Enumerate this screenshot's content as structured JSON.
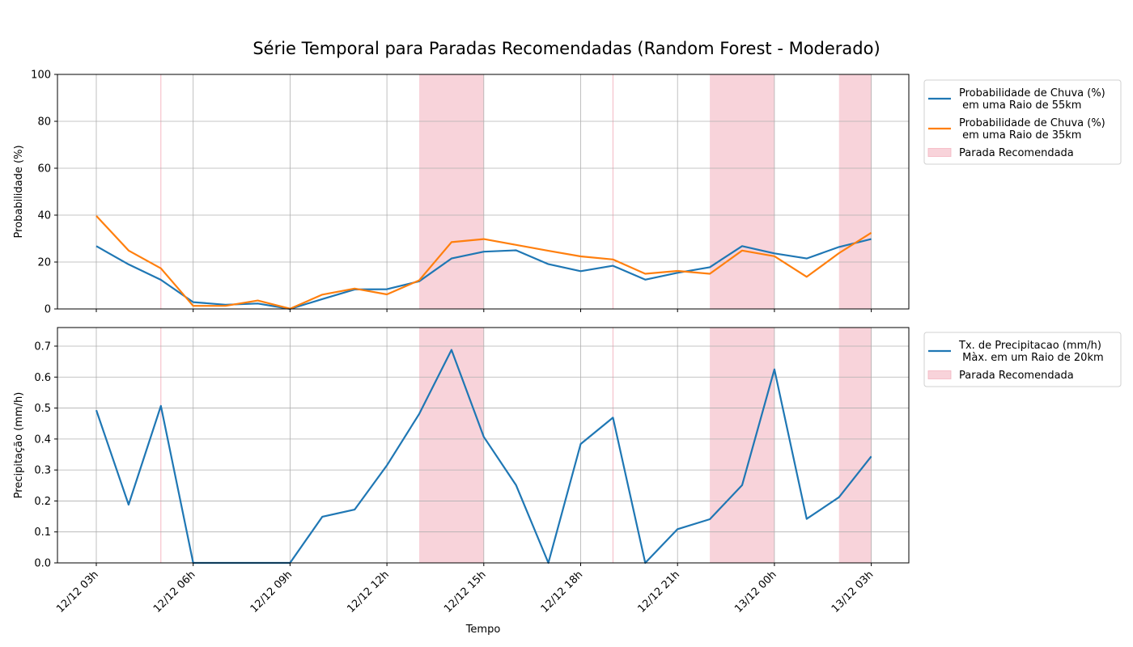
{
  "figure": {
    "title": "Série Temporal para Paradas Recomendadas (Random Forest - Moderado)",
    "xlabel": "Tempo"
  },
  "colors": {
    "blue": "#1f77b4",
    "orange": "#ff7f0e",
    "stop_fill": "#f4b6c2",
    "grid": "#b0b0b0"
  },
  "chart_data": [
    {
      "type": "line",
      "ylabel": "Probabilidade (%)",
      "ylim": [
        0,
        100
      ],
      "yticks": [
        "0",
        "20",
        "40",
        "60",
        "80",
        "100"
      ],
      "yticks_values": [
        0,
        20,
        40,
        60,
        80,
        100
      ],
      "x": [
        "12/12 03h",
        "12/12 04h",
        "12/12 05h",
        "12/12 06h",
        "12/12 07h",
        "12/12 08h",
        "12/12 09h",
        "12/12 10h",
        "12/12 11h",
        "12/12 12h",
        "12/12 13h",
        "12/12 14h",
        "12/12 15h",
        "12/12 16h",
        "12/12 17h",
        "12/12 18h",
        "12/12 19h",
        "12/12 20h",
        "12/12 21h",
        "12/12 22h",
        "12/12 23h",
        "13/12 00h",
        "13/12 01h",
        "13/12 02h",
        "13/12 03h"
      ],
      "series": [
        {
          "name": "Probabilidade de Chuva (%)\n em uma Raio de 55km",
          "color": "#1f77b4",
          "values": [
            26.8,
            19,
            12.4,
            2.9,
            1.8,
            2.3,
            0,
            4.2,
            8.3,
            8.4,
            11.8,
            21.5,
            24.4,
            25,
            19.1,
            16.1,
            18.4,
            12.5,
            15.4,
            17.8,
            26.8,
            23.7,
            21.5,
            26.4,
            29.8
          ]
        },
        {
          "name": "Probabilidade de Chuva (%)\n em uma Raio de 35km",
          "color": "#ff7f0e",
          "values": [
            39.7,
            24.9,
            17.3,
            1.3,
            1.3,
            3.6,
            0.1,
            6.1,
            8.7,
            6.2,
            12.2,
            28.5,
            29.8,
            27.3,
            24.8,
            22.4,
            21.1,
            15,
            16.2,
            15,
            24.9,
            22.5,
            13.7,
            23.8,
            32.5
          ]
        }
      ],
      "stop_ranges": [
        [
          "12/12 13h",
          "12/12 15h"
        ],
        [
          "12/12 22h",
          "13/12 00h"
        ],
        [
          "13/12 02h",
          "13/12 03h"
        ]
      ],
      "stop_lines": [
        "12/12 05h",
        "12/12 19h"
      ],
      "stop_label": "Parada Recomendada",
      "grid": true,
      "legend": "outside-right"
    },
    {
      "type": "line",
      "ylabel": "Precipitação (mm/h)",
      "ylim": [
        0,
        0.76
      ],
      "yticks": [
        "0.0",
        "0.1",
        "0.2",
        "0.3",
        "0.4",
        "0.5",
        "0.6",
        "0.7"
      ],
      "yticks_values": [
        0,
        0.1,
        0.2,
        0.3,
        0.4,
        0.5,
        0.6,
        0.7
      ],
      "x": [
        "12/12 03h",
        "12/12 04h",
        "12/12 05h",
        "12/12 06h",
        "12/12 07h",
        "12/12 08h",
        "12/12 09h",
        "12/12 10h",
        "12/12 11h",
        "12/12 12h",
        "12/12 13h",
        "12/12 14h",
        "12/12 15h",
        "12/12 16h",
        "12/12 17h",
        "12/12 18h",
        "12/12 19h",
        "12/12 20h",
        "12/12 21h",
        "12/12 22h",
        "12/12 23h",
        "13/12 00h",
        "13/12 01h",
        "13/12 02h",
        "13/12 03h"
      ],
      "series": [
        {
          "name": "Tx. de Precipitacao (mm/h)\n Màx. em um Raio de 20km",
          "color": "#1f77b4",
          "values": [
            0.493,
            0.188,
            0.507,
            0,
            0,
            0,
            0,
            0.149,
            0.172,
            0.315,
            0.481,
            0.688,
            0.407,
            0.251,
            0,
            0.384,
            0.469,
            0,
            0.109,
            0.141,
            0.251,
            0.625,
            0.142,
            0.212,
            0.344
          ]
        }
      ],
      "stop_ranges": [
        [
          "12/12 13h",
          "12/12 15h"
        ],
        [
          "12/12 22h",
          "13/12 00h"
        ],
        [
          "13/12 02h",
          "13/12 03h"
        ]
      ],
      "stop_lines": [
        "12/12 05h",
        "12/12 19h"
      ],
      "stop_label": "Parada Recomendada",
      "grid": true,
      "legend": "outside-right"
    }
  ],
  "xticks": [
    "12/12 03h",
    "12/12 06h",
    "12/12 09h",
    "12/12 12h",
    "12/12 15h",
    "12/12 18h",
    "12/12 21h",
    "13/12 00h",
    "13/12 03h"
  ]
}
